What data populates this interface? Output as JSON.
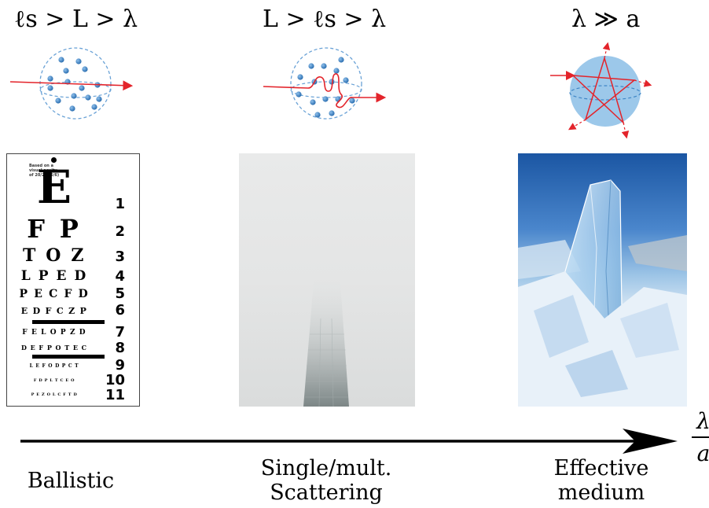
{
  "regimes": [
    {
      "condition": "ℓs > L > λ",
      "label_line1": "Ballistic",
      "label_line2": "",
      "illustration": "ballistic-scattering-icon",
      "photo": "eye-chart"
    },
    {
      "condition": "L > ℓs > λ",
      "label_line1": "Single/mult.",
      "label_line2": "Scattering",
      "illustration": "multiple-scattering-icon",
      "photo": "foggy-tower"
    },
    {
      "condition": "λ ≫ a",
      "label_line1": "Effective",
      "label_line2": "medium",
      "illustration": "effective-medium-icon",
      "photo": "clear-ice"
    }
  ],
  "axis": {
    "fraction_numerator": "λ",
    "fraction_denominator": "a"
  },
  "eye_chart": {
    "header": "Based on a visual acuity of 20/20 (6/6)",
    "rows": [
      {
        "letters": "E",
        "number": "1"
      },
      {
        "letters": "F P",
        "number": "2"
      },
      {
        "letters": "T O Z",
        "number": "3"
      },
      {
        "letters": "L P E D",
        "number": "4"
      },
      {
        "letters": "P E C F D",
        "number": "5"
      },
      {
        "letters": "E D F C Z P",
        "number": "6"
      },
      {
        "letters": "F E L O P Z D",
        "number": "7"
      },
      {
        "letters": "D E F P O T E C",
        "number": "8"
      },
      {
        "letters": "L E F O D P C T",
        "number": "9"
      },
      {
        "letters": "F D P L T C E O",
        "number": "10"
      },
      {
        "letters": "P E Z O L C F T D",
        "number": "11"
      }
    ]
  },
  "colors": {
    "ray": "#e3242b",
    "particle": "#3f86c6",
    "sphere_outline": "#6aa2d6",
    "effective_sphere": "#9cc8ea"
  }
}
